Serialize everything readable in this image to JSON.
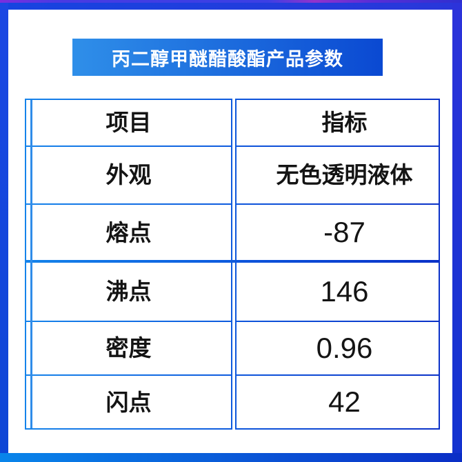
{
  "banner": {
    "title": "丙二醇甲醚醋酸酯产品参数"
  },
  "table": {
    "headers": [
      "项目",
      "指标"
    ],
    "rows": [
      {
        "label": "外观",
        "value": "无色透明液体"
      },
      {
        "label": "熔点",
        "value": "-87"
      },
      {
        "label": "沸点",
        "value": "146"
      },
      {
        "label": "密度",
        "value": "0.96"
      },
      {
        "label": "闪点",
        "value": "42"
      }
    ]
  },
  "colors": {
    "frame_blue": "#1b47e3",
    "frame_right_blue": "#2c33da",
    "top_strip_purple": "#7c2ede",
    "banner_gradient_start": "#2f8fe9",
    "banner_gradient_end": "#0a49d2",
    "table_border_light": "#1583ea",
    "table_border_dark": "#0a31c8",
    "bottom_bar_start": "#0985ea",
    "bottom_bar_end": "#0a2ec6",
    "text": "#141414"
  }
}
